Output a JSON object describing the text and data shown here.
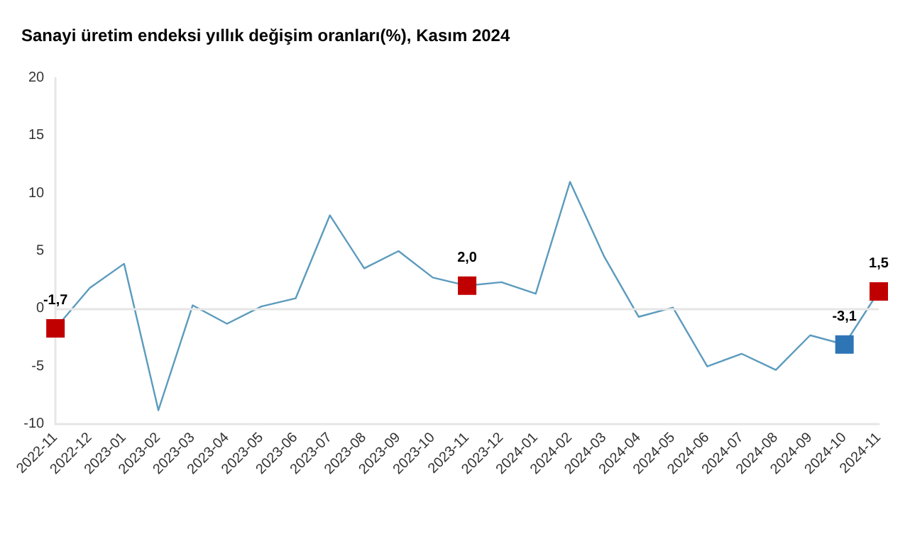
{
  "chart_data": {
    "type": "line",
    "title": "Sanayi üretim endeksi yıllık değişim oranları(%), Kasım 2024",
    "categories": [
      "2022-11",
      "2022-12",
      "2023-01",
      "2023-02",
      "2023-03",
      "2023-04",
      "2023-05",
      "2023-06",
      "2023-07",
      "2023-08",
      "2023-09",
      "2023-10",
      "2023-11",
      "2023-12",
      "2024-01",
      "2024-02",
      "2024-03",
      "2024-04",
      "2024-05",
      "2024-06",
      "2024-07",
      "2024-08",
      "2024-09",
      "2024-10",
      "2024-11"
    ],
    "series": [
      {
        "color": "#5b9bbd",
        "marker": "none",
        "values": [
          -1.7,
          1.8,
          3.9,
          -8.8,
          0.3,
          -1.3,
          0.2,
          0.9,
          8.1,
          3.5,
          5.0,
          2.7,
          2.0,
          2.3,
          1.3,
          11.0,
          4.5,
          -0.7,
          0.1,
          -5.0,
          -3.9,
          -5.3,
          -2.3,
          -3.1,
          1.5
        ]
      },
      {
        "type": "scatter",
        "marker": "square",
        "values": [
          -1.7,
          null,
          null,
          null,
          null,
          null,
          null,
          null,
          null,
          null,
          null,
          null,
          2.0,
          null,
          null,
          null,
          null,
          null,
          null,
          null,
          null,
          null,
          null,
          -3.1,
          1.5
        ],
        "value_labels": [
          "-1,7",
          null,
          null,
          null,
          null,
          null,
          null,
          null,
          null,
          null,
          null,
          null,
          "2,0",
          null,
          null,
          null,
          null,
          null,
          null,
          null,
          null,
          null,
          null,
          "-3,1",
          "1,5"
        ],
        "colors": [
          "#c00000",
          null,
          null,
          null,
          null,
          null,
          null,
          null,
          null,
          null,
          null,
          null,
          "#c00000",
          null,
          null,
          null,
          null,
          null,
          null,
          null,
          null,
          null,
          null,
          "#2e75b6",
          "#c00000"
        ]
      }
    ],
    "ylim": [
      -10,
      20
    ],
    "yticks": [
      -10,
      -5,
      0,
      5,
      10,
      15,
      20
    ],
    "grid": false,
    "line_style": "solid",
    "ref_lines": [
      {
        "axis": "y",
        "value": 0,
        "color": "#e6e6e6"
      }
    ]
  }
}
